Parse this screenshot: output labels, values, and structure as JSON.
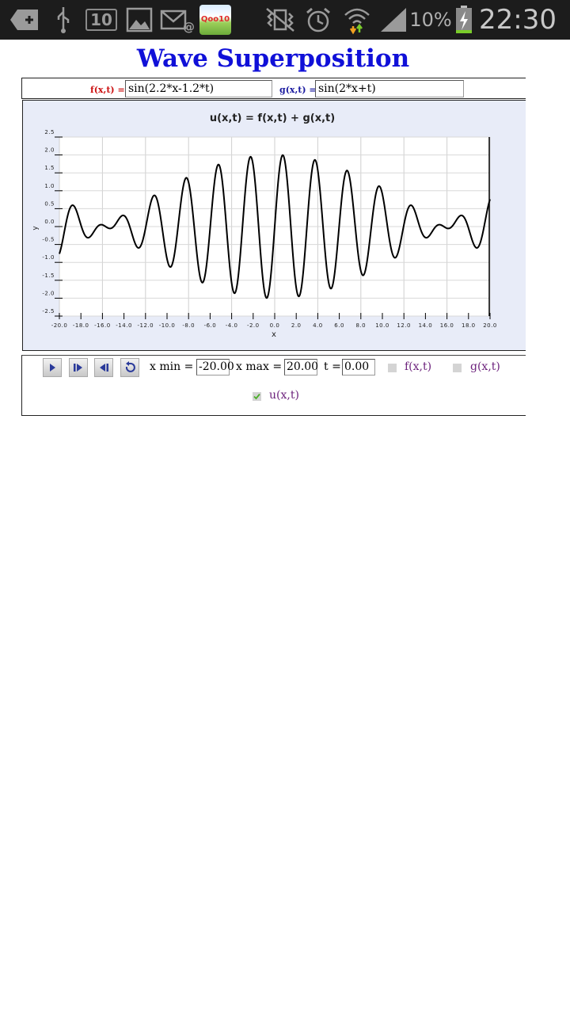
{
  "status_bar": {
    "icons": [
      "add-icon",
      "usb-icon",
      "notification-count-badge",
      "gallery-icon",
      "email-icon",
      "qoo10-app-icon",
      "vibrate-icon",
      "alarm-icon",
      "wifi-icon",
      "signal-icon",
      "battery-charging-icon"
    ],
    "notification_count": "10",
    "qoo10_label": "Qoo10",
    "battery_percent": "10%",
    "time": "22:30"
  },
  "page": {
    "title": "Wave Superposition"
  },
  "functions": {
    "f_label": "f(x,t) =",
    "f_value": "sin(2.2*x-1.2*t)",
    "g_label": "g(x,t) =",
    "g_value": "sin(2*x+t)",
    "f_color": "#cc1111",
    "g_color": "#1a1aa0"
  },
  "controls": {
    "buttons": [
      "play-icon",
      "step-forward-icon",
      "step-back-icon",
      "reset-icon"
    ],
    "xmin_label": "x min =",
    "xmin_value": "-20.00",
    "xmax_label": "x max =",
    "xmax_value": "20.00",
    "t_label": "t =",
    "t_value": "0.00",
    "show_f_label": "f(x,t)",
    "show_g_label": "g(x,t)",
    "show_u_label": "u(x,t)",
    "show_f": false,
    "show_g": false,
    "show_u": true
  },
  "chart_data": {
    "type": "line",
    "title": "u(x,t) = f(x,t) + g(x,t)",
    "xlabel": "x",
    "ylabel": "y",
    "xlim": [
      -20,
      20
    ],
    "ylim": [
      -2.5,
      2.5
    ],
    "x_ticks": [
      "-20.0",
      "-18.0",
      "-16.0",
      "-14.0",
      "-12.0",
      "-10.0",
      "-8.0",
      "-6.0",
      "-4.0",
      "-2.0",
      "0.0",
      "2.0",
      "4.0",
      "6.0",
      "8.0",
      "10.0",
      "12.0",
      "14.0",
      "16.0",
      "18.0",
      "20.0"
    ],
    "y_ticks": [
      "2.5",
      "2.0",
      "1.5",
      "1.0",
      "0.5",
      "0.0",
      "-0.5",
      "-1.0",
      "-1.5",
      "-2.0",
      "-2.5"
    ],
    "grid": true,
    "series": [
      {
        "name": "u(x,t)",
        "expression": "sin(2.2*x-1.2*t) + sin(2*x+t)",
        "t": 0,
        "color": "#000000"
      }
    ]
  }
}
